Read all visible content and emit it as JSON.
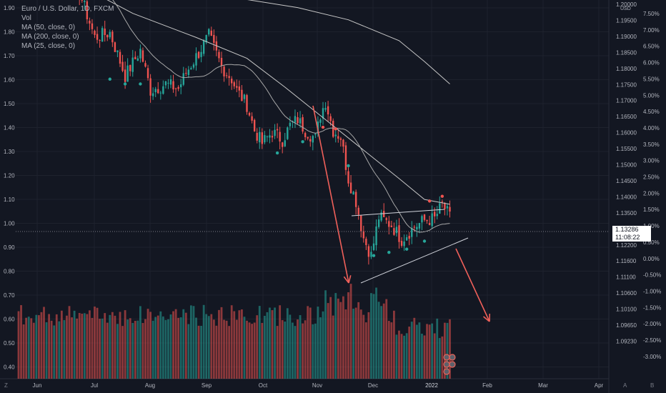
{
  "legend": {
    "symbol": "Euro / U.S. Dollar, 1D, FXCM",
    "vol": "Vol",
    "ma50": "MA (50, close, 0)",
    "ma200": "MA (200, close, 0)",
    "ma25": "MA (25, close, 0)"
  },
  "price_tag": {
    "price": "1.13286",
    "countdown": "11:08:22"
  },
  "corner_left": "Z",
  "corner_right_a": "A",
  "corner_right_b": "B",
  "colors": {
    "up": "#26a69a",
    "down": "#ef5350",
    "bg": "#131722",
    "grid": "#1e222d",
    "ma": "#c7c7c7",
    "arrow": "#f0605a"
  },
  "chart_data": {
    "type": "candlestick",
    "x_ticks": [
      "Jun",
      "Jul",
      "Aug",
      "Sep",
      "Oct",
      "Nov",
      "Dec",
      "2022",
      "Feb",
      "Mar",
      "Apr"
    ],
    "left_axis_ticks": [
      "1.90",
      "1.80",
      "1.70",
      "1.60",
      "1.50",
      "1.40",
      "1.30",
      "1.20",
      "1.10",
      "1.00",
      "0.90",
      "0.80",
      "0.70",
      "0.60",
      "0.50",
      "0.40"
    ],
    "price_axis_ticks": [
      "1.20000",
      "1.19500",
      "1.19000",
      "1.18500",
      "1.18000",
      "1.17500",
      "1.17000",
      "1.16500",
      "1.16000",
      "1.15500",
      "1.15000",
      "1.14500",
      "1.14000",
      "1.13500",
      "1.12800",
      "1.12200",
      "1.11600",
      "1.11100",
      "1.10600",
      "1.10100",
      "1.09650",
      "1.09230"
    ],
    "price_axis_unit": "USD",
    "pct_axis_ticks": [
      "7.50%",
      "7.00%",
      "6.50%",
      "6.00%",
      "5.50%",
      "5.00%",
      "4.50%",
      "4.00%",
      "3.50%",
      "3.00%",
      "2.50%",
      "2.00%",
      "1.50%",
      "1.00%",
      "0.50%",
      "0.00%",
      "-0.50%",
      "-1.00%",
      "-1.50%",
      "-2.00%",
      "-2.50%",
      "-3.00%"
    ],
    "ylim_price": [
      1.092,
      1.2
    ],
    "close_anchors": [
      [
        0,
        1.2205
      ],
      [
        8,
        1.219
      ],
      [
        13,
        1.2135
      ],
      [
        20,
        1.2125
      ],
      [
        30,
        1.189
      ],
      [
        36,
        1.1905
      ],
      [
        42,
        1.177
      ],
      [
        48,
        1.185
      ],
      [
        52,
        1.1725
      ],
      [
        58,
        1.1745
      ],
      [
        63,
        1.173
      ],
      [
        66,
        1.178
      ],
      [
        72,
        1.1855
      ],
      [
        75,
        1.1895
      ],
      [
        80,
        1.18
      ],
      [
        84,
        1.176
      ],
      [
        86,
        1.1725
      ],
      [
        90,
        1.168
      ],
      [
        93,
        1.16
      ],
      [
        96,
        1.156
      ],
      [
        100,
        1.1595
      ],
      [
        104,
        1.157
      ],
      [
        107,
        1.1615
      ],
      [
        110,
        1.1635
      ],
      [
        113,
        1.16
      ],
      [
        117,
        1.1575
      ],
      [
        119,
        1.165
      ],
      [
        121,
        1.169
      ],
      [
        124,
        1.16
      ],
      [
        127,
        1.158
      ],
      [
        130,
        1.145
      ],
      [
        133,
        1.138
      ],
      [
        136,
        1.1265
      ],
      [
        139,
        1.121
      ],
      [
        142,
        1.133
      ],
      [
        147,
        1.1305
      ],
      [
        151,
        1.126
      ],
      [
        156,
        1.13
      ],
      [
        160,
        1.132
      ],
      [
        164,
        1.1325
      ],
      [
        167,
        1.137
      ],
      [
        170,
        1.133
      ]
    ],
    "volume_axis": [
      0.4,
      0.72
    ],
    "annotations": {
      "ma200": [
        [
          0,
          1.2045
        ],
        [
          30,
          1.2024
        ],
        [
          60,
          1.2013
        ],
        [
          90,
          1.2008
        ],
        [
          110,
          1.1983
        ],
        [
          130,
          1.1945
        ],
        [
          150,
          1.188
        ],
        [
          160,
          1.1815
        ],
        [
          170,
          1.1745
        ]
      ],
      "ma50": [
        [
          0,
          1.217
        ],
        [
          20,
          1.207
        ],
        [
          45,
          1.1965
        ],
        [
          70,
          1.189
        ],
        [
          90,
          1.1825
        ],
        [
          105,
          1.1735
        ],
        [
          120,
          1.164
        ],
        [
          135,
          1.1545
        ],
        [
          150,
          1.145
        ],
        [
          160,
          1.1385
        ],
        [
          170,
          1.137
        ]
      ],
      "ma25_start": 52
    }
  }
}
